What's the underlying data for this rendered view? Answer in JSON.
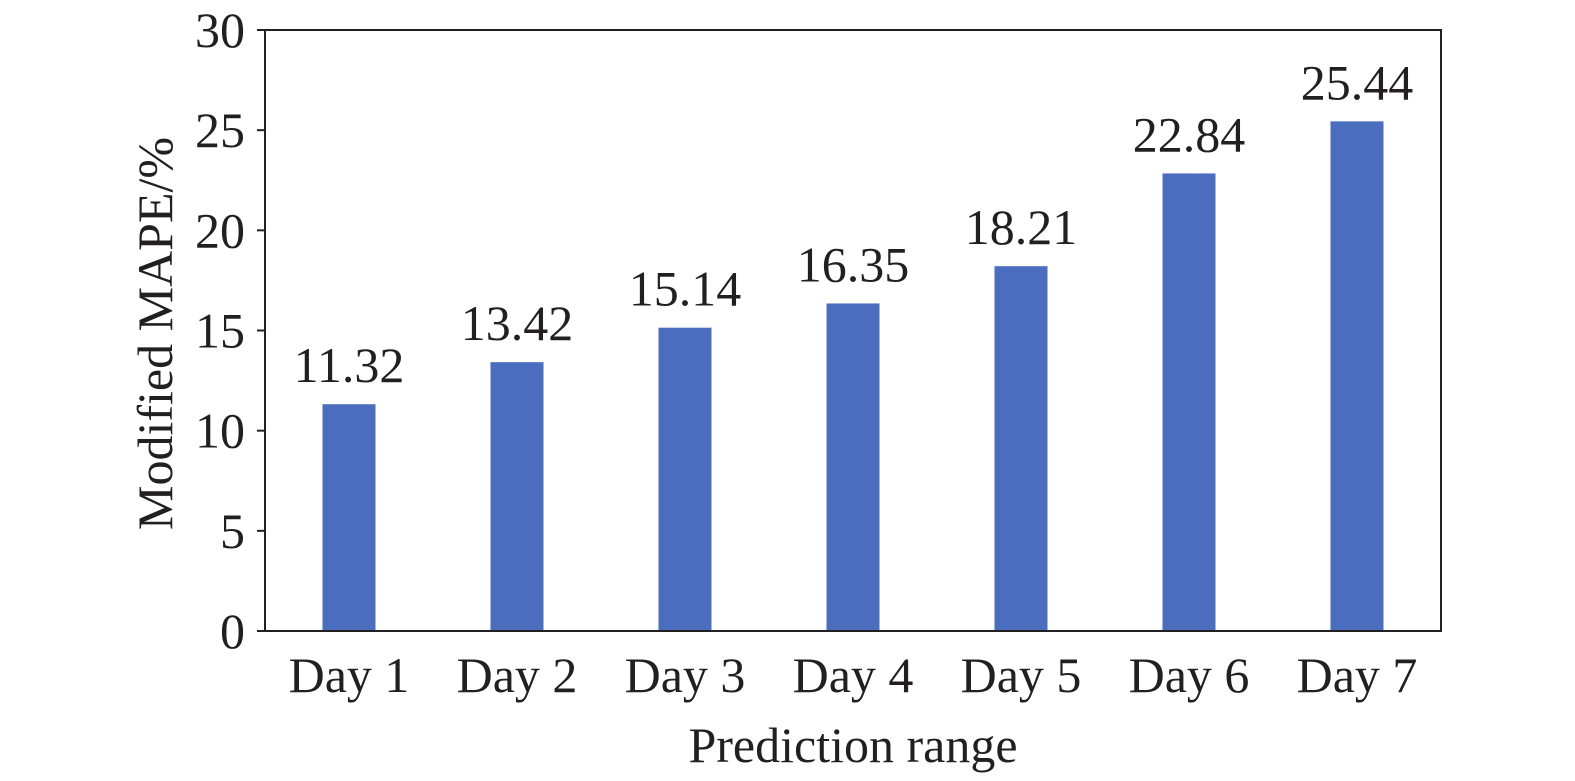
{
  "chart_data": {
    "type": "bar",
    "categories": [
      "Day 1",
      "Day 2",
      "Day 3",
      "Day 4",
      "Day 5",
      "Day 6",
      "Day 7"
    ],
    "values": [
      11.32,
      13.42,
      15.14,
      16.35,
      18.21,
      22.84,
      25.44
    ],
    "value_labels": [
      "11.32",
      "13.42",
      "15.14",
      "16.35",
      "18.21",
      "22.84",
      "25.44"
    ],
    "xlabel": "Prediction range",
    "ylabel": "Modified MAPE/%",
    "ylim": [
      0,
      30
    ],
    "yticks": [
      "0",
      "5",
      "10",
      "15",
      "20",
      "25",
      "30"
    ],
    "grid": false,
    "bar_color": "#4a6ebd",
    "axis_color": "#231f20"
  }
}
